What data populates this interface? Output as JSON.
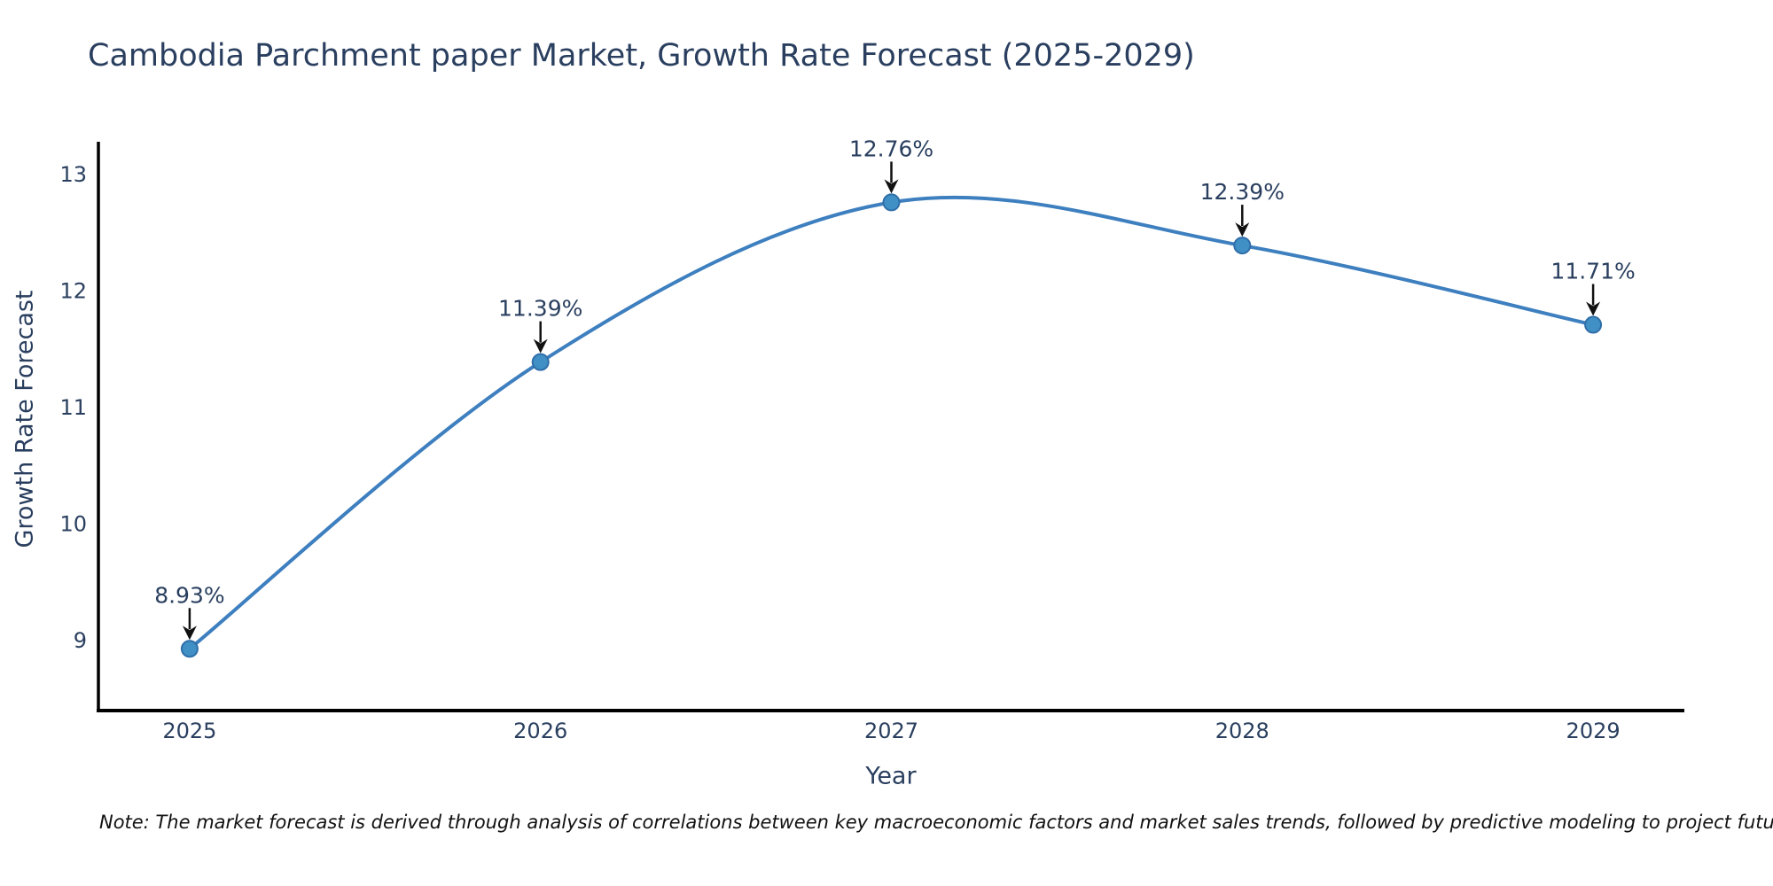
{
  "title": "Cambodia Parchment paper Market, Growth Rate Forecast (2025-2029)",
  "note": "Note: The market forecast is derived through analysis of correlations between key macroeconomic factors and market sales trends, followed by predictive modeling to project future sales.",
  "chart_data": {
    "type": "line",
    "x": [
      2025,
      2026,
      2027,
      2028,
      2029
    ],
    "values": [
      8.93,
      11.39,
      12.76,
      12.39,
      11.71
    ],
    "point_labels": [
      "8.93%",
      "11.39%",
      "12.76%",
      "12.39%",
      "11.71%"
    ],
    "title": "Cambodia Parchment paper Market, Growth Rate Forecast (2025-2029)",
    "xlabel": "Year",
    "ylabel": "Growth Rate Forecast",
    "xticks": [
      "2025",
      "2026",
      "2027",
      "2028",
      "2029"
    ],
    "yticks": [
      9,
      10,
      11,
      12,
      13
    ],
    "xlim": [
      2024.74,
      2029.26
    ],
    "ylim": [
      8.4,
      13.28
    ],
    "line_shape": "spline",
    "grid": false,
    "legend": "none",
    "colors": {
      "line": "#3d7fbf",
      "marker_fill": "#4090c5",
      "marker_edge": "#2f6ea9",
      "arrow": "#111111",
      "axis_line": "#000000",
      "text": "#2a3f5f"
    }
  }
}
